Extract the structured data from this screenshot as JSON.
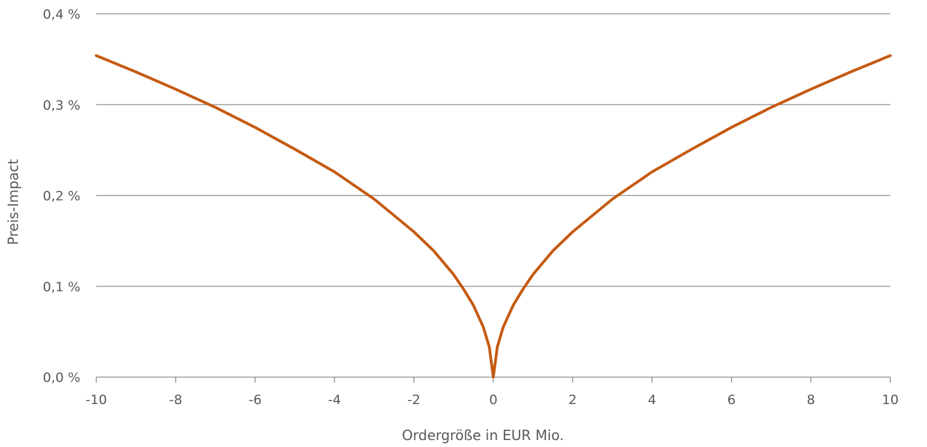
{
  "chart_data": {
    "type": "line",
    "xlabel": "Ordergröße in EUR Mio.",
    "ylabel": "Preis-Impact",
    "xlim": [
      -10,
      10
    ],
    "ylim": [
      0,
      0.4
    ],
    "x_ticks": [
      -10,
      -8,
      -6,
      -4,
      -2,
      0,
      2,
      4,
      6,
      8,
      10
    ],
    "x_tick_labels": [
      "-10",
      "-8",
      "-6",
      "-4",
      "-2",
      "0",
      "2",
      "4",
      "6",
      "8",
      "10"
    ],
    "y_ticks": [
      0,
      0.1,
      0.2,
      0.3,
      0.4
    ],
    "y_tick_labels": [
      "0,0 %",
      "0,1 %",
      "0,2 %",
      "0,3 %",
      "0,4 %"
    ],
    "grid": "horizontal",
    "legend": "none",
    "color": "#C55A11",
    "series": [
      {
        "x": [
          -10,
          -9,
          -8,
          -7,
          -6,
          -5,
          -4,
          -3,
          -2,
          -1.5,
          -1,
          -0.75,
          -0.5,
          -0.25,
          -0.1,
          0,
          0.1,
          0.25,
          0.5,
          0.75,
          1,
          1.5,
          2,
          3,
          4,
          5,
          6,
          7,
          8,
          9,
          10
        ],
        "y": [
          0.354,
          0.336,
          0.317,
          0.297,
          0.275,
          0.251,
          0.226,
          0.196,
          0.16,
          0.139,
          0.113,
          0.097,
          0.079,
          0.055,
          0.033,
          0.0,
          0.033,
          0.055,
          0.079,
          0.097,
          0.113,
          0.139,
          0.16,
          0.196,
          0.226,
          0.251,
          0.275,
          0.297,
          0.317,
          0.336,
          0.354
        ]
      }
    ]
  }
}
